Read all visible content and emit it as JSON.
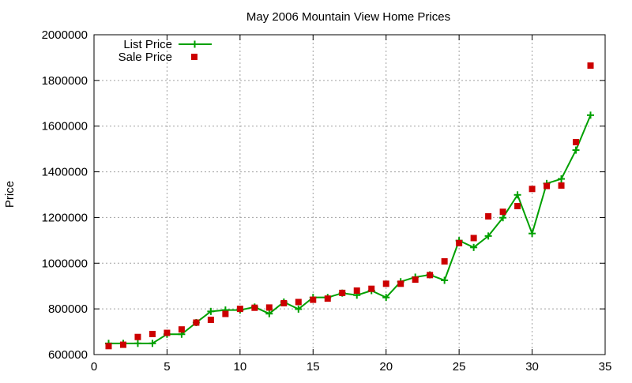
{
  "chart_data": {
    "type": "line",
    "title": "May 2006 Mountain View Home Prices",
    "xlabel": "",
    "ylabel": "Price",
    "xlim": [
      0,
      35
    ],
    "ylim": [
      600000,
      2000000
    ],
    "x_ticks": [
      "0",
      "5",
      "10",
      "15",
      "20",
      "25",
      "30",
      "35"
    ],
    "y_ticks": [
      "600000",
      "800000",
      "1000000",
      "1200000",
      "1400000",
      "1600000",
      "1800000",
      "2000000"
    ],
    "grid": true,
    "legend_position": "top-left",
    "colors": {
      "list_price": "#00a000",
      "sale_price": "#cc0000",
      "grid": "#a0a0a0",
      "axes": "#000000"
    },
    "series": [
      {
        "name": "List Price",
        "style": "lines-points",
        "marker": "plus",
        "points": [
          [
            1,
            649000
          ],
          [
            2,
            649000
          ],
          [
            3,
            649000
          ],
          [
            4,
            649000
          ],
          [
            5,
            689000
          ],
          [
            6,
            689000
          ],
          [
            7,
            740000
          ],
          [
            8,
            789000
          ],
          [
            9,
            795000
          ],
          [
            10,
            795000
          ],
          [
            11,
            808000
          ],
          [
            12,
            779000
          ],
          [
            13,
            830000
          ],
          [
            14,
            799000
          ],
          [
            15,
            850000
          ],
          [
            16,
            850000
          ],
          [
            17,
            869000
          ],
          [
            18,
            860000
          ],
          [
            19,
            880000
          ],
          [
            20,
            850000
          ],
          [
            21,
            919000
          ],
          [
            22,
            939000
          ],
          [
            23,
            949000
          ],
          [
            24,
            925000
          ],
          [
            25,
            1099000
          ],
          [
            26,
            1069000
          ],
          [
            27,
            1119000
          ],
          [
            28,
            1199000
          ],
          [
            29,
            1299000
          ],
          [
            30,
            1130000
          ],
          [
            31,
            1349000
          ],
          [
            32,
            1369000
          ],
          [
            33,
            1495000
          ],
          [
            34,
            1648000
          ]
        ]
      },
      {
        "name": "Sale Price",
        "style": "points",
        "marker": "square",
        "points": [
          [
            1,
            637000
          ],
          [
            2,
            643000
          ],
          [
            3,
            677000
          ],
          [
            4,
            690000
          ],
          [
            5,
            695000
          ],
          [
            6,
            710000
          ],
          [
            7,
            740000
          ],
          [
            8,
            752000
          ],
          [
            9,
            778000
          ],
          [
            10,
            800000
          ],
          [
            11,
            805000
          ],
          [
            12,
            806000
          ],
          [
            13,
            825000
          ],
          [
            14,
            830000
          ],
          [
            15,
            840000
          ],
          [
            16,
            845000
          ],
          [
            17,
            870000
          ],
          [
            18,
            880000
          ],
          [
            19,
            888000
          ],
          [
            20,
            910000
          ],
          [
            21,
            910000
          ],
          [
            22,
            928000
          ],
          [
            23,
            948000
          ],
          [
            24,
            1008000
          ],
          [
            25,
            1088000
          ],
          [
            26,
            1110000
          ],
          [
            27,
            1205000
          ],
          [
            28,
            1225000
          ],
          [
            29,
            1250000
          ],
          [
            30,
            1325000
          ],
          [
            31,
            1338000
          ],
          [
            32,
            1340000
          ],
          [
            33,
            1530000
          ],
          [
            34,
            1865000
          ]
        ]
      }
    ]
  }
}
